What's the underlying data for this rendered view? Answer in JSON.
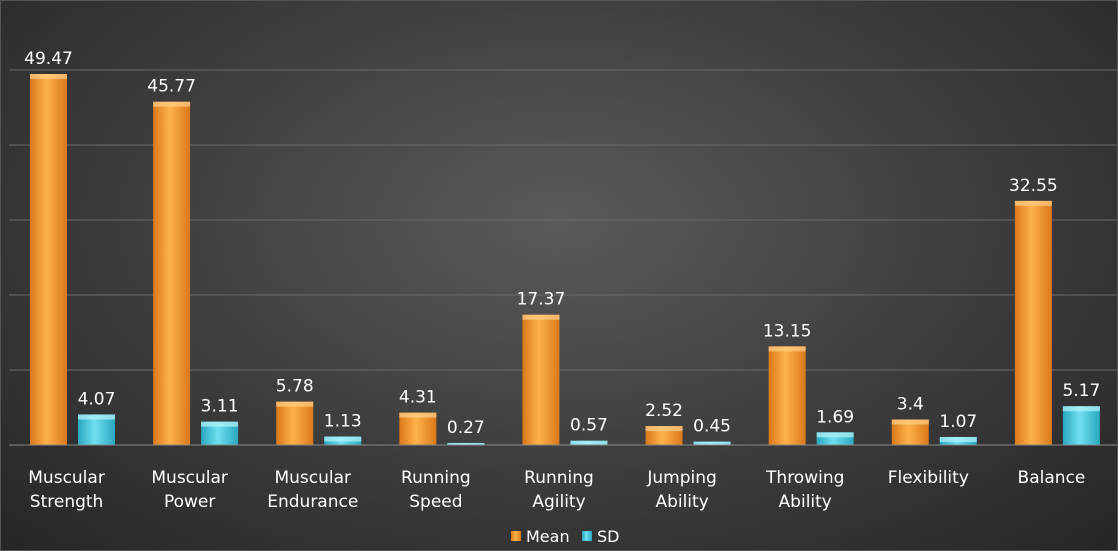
{
  "chart_data": {
    "type": "bar",
    "title": "",
    "xlabel": "",
    "ylabel": "",
    "categories": [
      [
        "Muscular",
        "Strength"
      ],
      [
        "Muscular",
        "Power"
      ],
      [
        "Muscular",
        "Endurance"
      ],
      [
        "Running",
        "Speed"
      ],
      [
        "Running",
        "Agility"
      ],
      [
        "Jumping",
        "Ability"
      ],
      [
        "Throwing",
        "Ability"
      ],
      [
        "Flexibility"
      ],
      [
        "Balance"
      ]
    ],
    "series": [
      {
        "name": "Mean",
        "color": "#f29a2e",
        "values": [
          49.47,
          45.77,
          5.78,
          4.31,
          17.37,
          2.52,
          13.15,
          3.4,
          32.55
        ],
        "value_labels": [
          "49.47",
          "45.77",
          "5.78",
          "4.31",
          "17.37",
          "2.52",
          "13.15",
          "3.4",
          "32.55"
        ]
      },
      {
        "name": "SD",
        "color": "#3fc4dc",
        "values": [
          4.07,
          3.11,
          1.13,
          0.27,
          0.57,
          0.45,
          1.69,
          1.07,
          5.17
        ],
        "value_labels": [
          "4.07",
          "3.11",
          "1.13",
          "0.27",
          "0.57",
          "0.45",
          "1.69",
          "1.07",
          "5.17"
        ]
      }
    ],
    "ylim": [
      0,
      50
    ],
    "y_gridline_step": 10,
    "grid": true,
    "data_labels": true,
    "legend_position": "bottom"
  }
}
